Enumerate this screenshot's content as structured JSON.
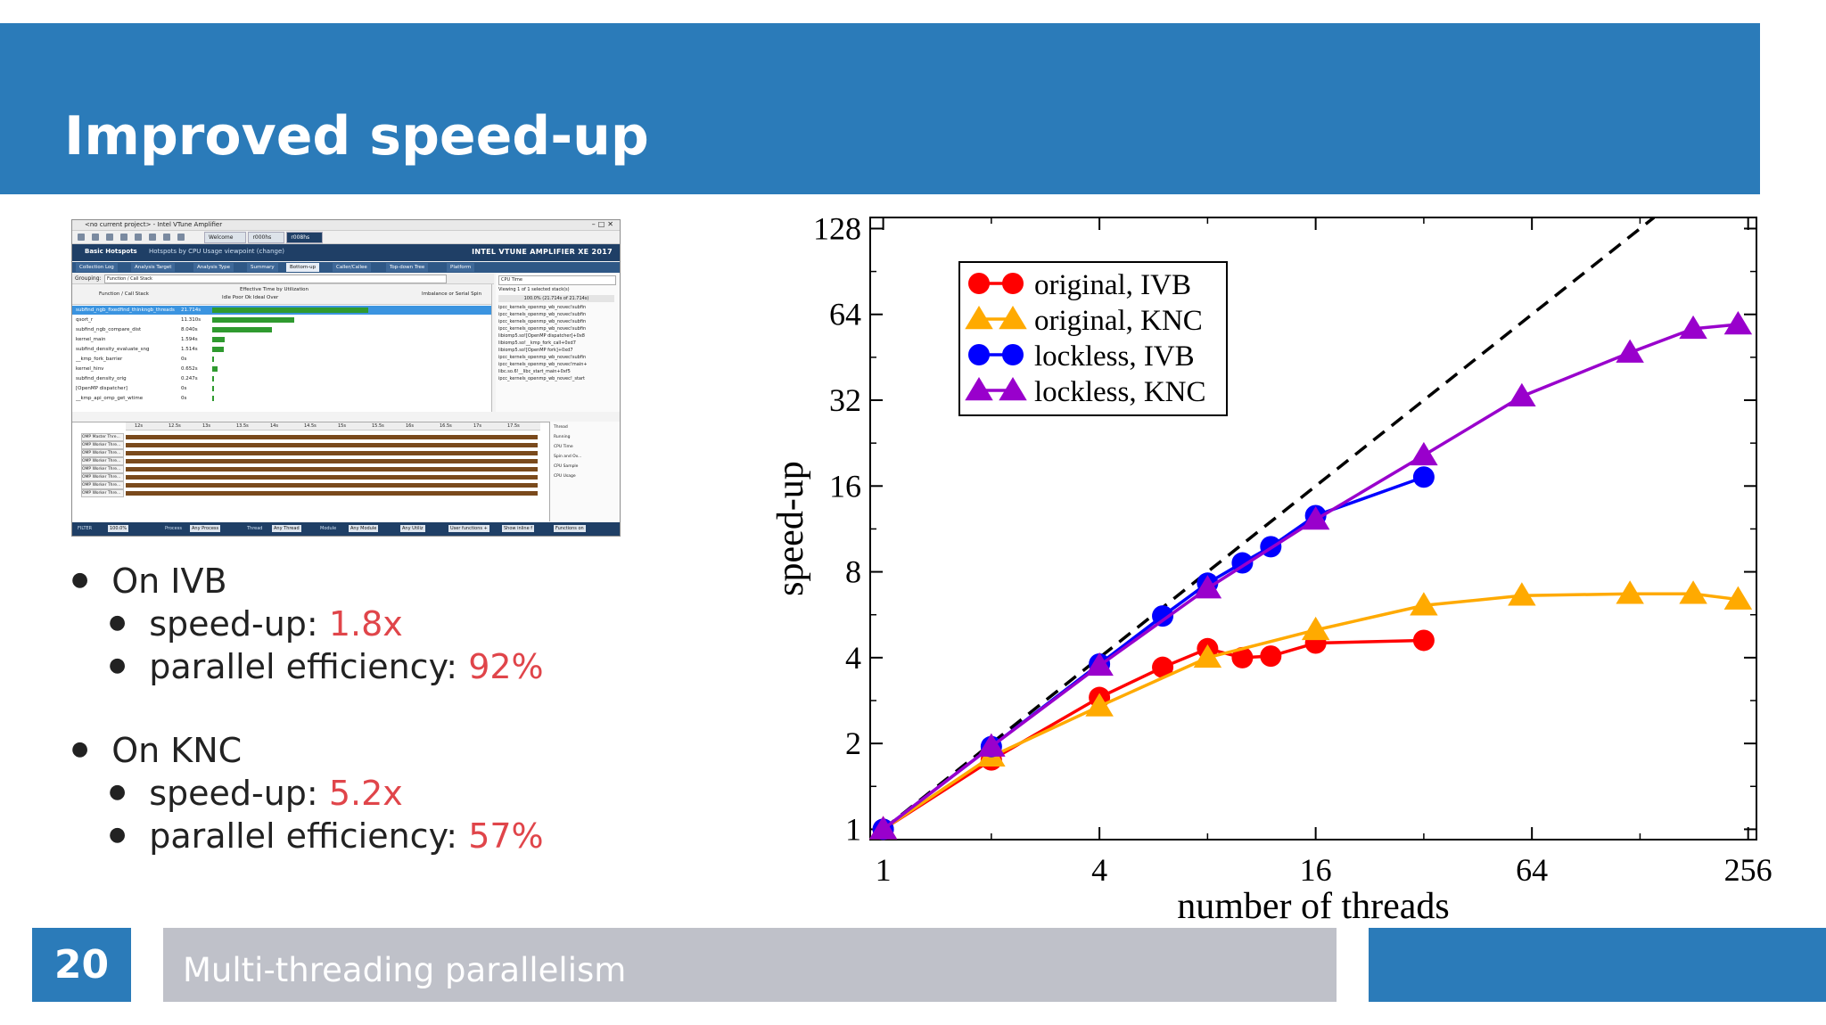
{
  "slide": {
    "title": "Improved speed-up",
    "number": "20",
    "footer": "Multi-threading parallelism",
    "colors": {
      "primary": "#2b7bb9",
      "footer_gray": "#bfc1c9",
      "accent": "#e0454a"
    }
  },
  "vtune": {
    "window_title": "<no current project> - Intel VTune Amplifier",
    "doc_tabs": [
      "Welcome",
      "r000hs",
      "r008hs"
    ],
    "analysis_label": "Basic Hotspots",
    "analysis_subtitle": "Hotspots by CPU Usage viewpoint (change)",
    "brand": "INTEL VTUNE AMPLIFIER XE 2017",
    "analysis_tabs": [
      "Collection Log",
      "Analysis Target",
      "Analysis Type",
      "Summary",
      "Bottom-up",
      "Caller/Callee",
      "Top-down Tree",
      "Platform"
    ],
    "grouping_label": "Grouping:",
    "grouping_value": "Function / Call Stack",
    "col_function": "Function / Call Stack",
    "col_effective": "Effective Time by Utilization",
    "col_legend": "Idle  Poor  Ok  Ideal  Over",
    "col_imbalance": "Imbalance or Serial Spin",
    "rows": [
      {
        "fn": "subfind_ngb_fixedfind_thinkngb_threads",
        "time": "21.714s",
        "level": 0.76
      },
      {
        "fn": "qsort_r",
        "time": "11.310s",
        "level": 0.4
      },
      {
        "fn": "subfind_ngb_compare_dist",
        "time": "8.040s",
        "level": 0.29
      },
      {
        "fn": "kernel_main",
        "time": "1.594s",
        "level": 0.06
      },
      {
        "fn": "subfind_density_evaluate_sng",
        "time": "1.514s",
        "level": 0.055
      },
      {
        "fn": "__kmp_fork_barrier",
        "time": "0s",
        "level": 0
      },
      {
        "fn": "kernel_hinv",
        "time": "0.652s",
        "level": 0.025
      },
      {
        "fn": "subfind_density_orig",
        "time": "0.247s",
        "level": 0.01
      },
      {
        "fn": "[OpenMP dispatcher]",
        "time": "0s",
        "level": 0
      },
      {
        "fn": "__kmp_api_omp_get_wtime",
        "time": "0s",
        "level": 0
      }
    ],
    "side_header": "CPU Time",
    "side_viewing": "Viewing  1 of 1  selected stack(s)",
    "side_percent": "100.0% (21.714s of 21.714s)",
    "side_stack": [
      "ipcc_kernels_openmp_wb_novec!subfin",
      "ipcc_kernels_openmp_wb_novec!subfin",
      "ipcc_kernels_openmp_wb_novec!subfin",
      "ipcc_kernels_openmp_wb_novec!subfin",
      "libiomp5.so![OpenMP dispatcher]+0x8",
      "libiomp5.so!__kmp_fork_call+0xd7",
      "libiomp5.so![OpenMP fork]+0xd7",
      "ipcc_kernels_openmp_wb_novec!subfin",
      "ipcc_kernels_openmp_wb_novec!main+",
      "libc.so.6!__libc_start_main+0xf5",
      "ipcc_kernels_openmp_wb_novec!_start"
    ],
    "timeline_ticks": [
      "12s",
      "12.5s",
      "13s",
      "13.5s",
      "14s",
      "14.5s",
      "15s",
      "15.5s",
      "16s",
      "16.5s",
      "17s",
      "17.5s"
    ],
    "threads": [
      "OMP Master Thre...",
      "OMP Worker Thre...",
      "OMP Worker Thre...",
      "OMP Worker Thre...",
      "OMP Worker Thre...",
      "OMP Worker Thre...",
      "OMP Worker Thre...",
      "OMP Worker Thre..."
    ],
    "timeline_legend": [
      "Thread",
      "Running",
      "CPU Time",
      "Spin and Ov...",
      "CPU Sample",
      "CPU Usage"
    ],
    "filter_items": [
      "FILTER",
      "100.0%",
      "Process",
      "Any Process",
      "Thread",
      "Any Thread",
      "Module",
      "Any Module",
      "Any Utiliz",
      "User functions +",
      "Show inline f",
      "Functions on"
    ]
  },
  "bullets": [
    {
      "prefix": "On ",
      "name": "IVB",
      "items": [
        {
          "label": "speed-up: ",
          "value": "1.8x"
        },
        {
          "label": "parallel efficiency: ",
          "value": "92%"
        }
      ]
    },
    {
      "prefix": "On ",
      "name": "KNC",
      "items": [
        {
          "label": "speed-up: ",
          "value": "5.2x"
        },
        {
          "label": "parallel efficiency: ",
          "value": "57%"
        }
      ]
    }
  ],
  "chart_data": {
    "type": "line",
    "xlabel": "number of threads",
    "ylabel": "speed-up",
    "xscale": "log2",
    "yscale": "log2",
    "xlim": [
      0.92,
      270
    ],
    "ylim": [
      0.92,
      140
    ],
    "xticks": [
      1,
      4,
      16,
      64,
      256
    ],
    "yticks": [
      1,
      2,
      4,
      8,
      16,
      32,
      64,
      128
    ],
    "legend_placement": "top-left",
    "ideal_line": true,
    "series": [
      {
        "name": "original, IVB",
        "color": "#ff0000",
        "marker": "circle",
        "x": [
          1,
          2,
          4,
          6,
          8,
          10,
          12,
          16,
          32
        ],
        "y": [
          1,
          1.75,
          2.9,
          3.7,
          4.3,
          4.0,
          4.05,
          4.5,
          4.6
        ]
      },
      {
        "name": "original, KNC",
        "color": "#ffaa00",
        "marker": "triangle",
        "x": [
          1,
          2,
          4,
          8,
          16,
          32,
          60,
          120,
          180,
          240
        ],
        "y": [
          1,
          1.8,
          2.7,
          4.0,
          5.0,
          6.1,
          6.6,
          6.7,
          6.7,
          6.4
        ]
      },
      {
        "name": "lockless, IVB",
        "color": "#0000ff",
        "marker": "circle",
        "x": [
          1,
          2,
          4,
          6,
          8,
          10,
          12,
          16,
          32
        ],
        "y": [
          1,
          1.95,
          3.8,
          5.6,
          7.3,
          8.6,
          9.8,
          12.6,
          17.2
        ]
      },
      {
        "name": "lockless, KNC",
        "color": "#9900cc",
        "marker": "triangle",
        "x": [
          1,
          2,
          4,
          8,
          16,
          32,
          60,
          120,
          180,
          240
        ],
        "y": [
          1,
          1.95,
          3.75,
          7.0,
          12.2,
          20.5,
          33,
          47,
          57,
          59
        ]
      }
    ]
  }
}
